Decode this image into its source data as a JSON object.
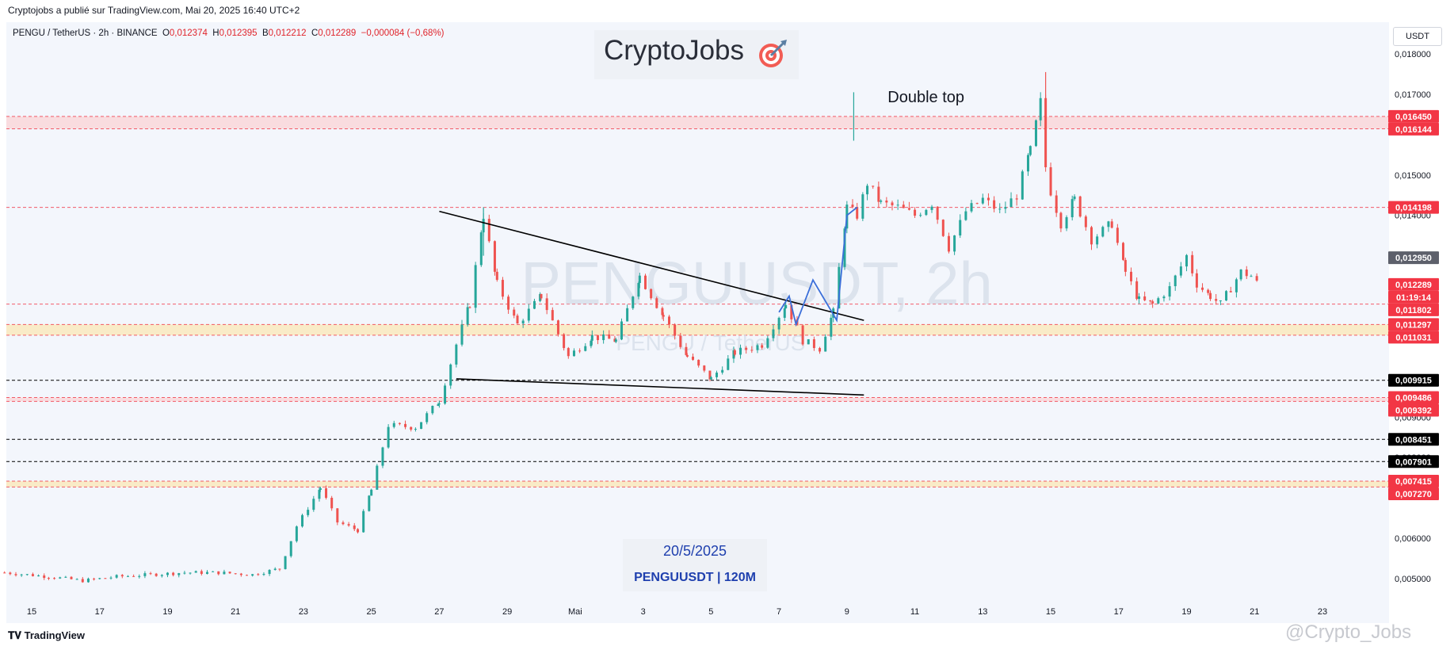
{
  "top_caption": "Cryptojobs a publié sur TradingView.com, Mai 20, 2025 16:40 UTC+2",
  "symbol_header": {
    "symbol": "PENGU / TetherUS · 2h · BINANCE",
    "open_label": "O",
    "open": "0,012374",
    "high_label": "H",
    "high": "0,012395",
    "low_label": "B",
    "low": "0,012212",
    "close_label": "C",
    "close": "0,012289",
    "change": "−0,000084 (−0,68%)"
  },
  "currency": "USDT",
  "brand": {
    "name": "CryptoJobs",
    "icon": "target-dart-icon"
  },
  "watermark": {
    "main": "PENGUUSDT, 2h",
    "sub": "PENGU / TetherUS"
  },
  "annotation_double_top": "Double top",
  "caption_box": {
    "date": "20/5/2025",
    "pair": "PENGUUSDT | 120M"
  },
  "footer_logo": "TradingView",
  "corner_watermark": "@Crypto_Jobs",
  "colors": {
    "up": "#26a69a",
    "down": "#ef5350",
    "resistance": "#f23645",
    "support": "#000000",
    "zone": "#fbe7b5",
    "projection": "#3b6fd9"
  },
  "chart_data": {
    "type": "candlestick",
    "title": "PENGU / TetherUS · 2h · BINANCE",
    "y_axis": {
      "ticks": [
        "0,018000",
        "0,017000",
        "0,015000",
        "0,014000",
        "0,013000",
        "0,009000",
        "0,008000",
        "0,006000",
        "0,005000"
      ],
      "tick_values": [
        0.018,
        0.017,
        0.015,
        0.014,
        0.013,
        0.009,
        0.008,
        0.006,
        0.005
      ],
      "range": [
        0.0045,
        0.0185
      ]
    },
    "x_axis": {
      "ticks": [
        "15",
        "17",
        "19",
        "21",
        "23",
        "25",
        "27",
        "29",
        "Mai",
        "3",
        "5",
        "7",
        "9",
        "11",
        "13",
        "15",
        "17",
        "19",
        "21",
        "23"
      ],
      "tick_days": [
        15,
        17,
        19,
        21,
        23,
        25,
        27,
        29,
        31,
        33,
        35,
        37,
        39,
        41,
        43,
        45,
        47,
        49,
        51,
        53
      ],
      "note": "tick_days are days counted from 1 April 2025 (Mai = 1 May)"
    },
    "close_price_series": {
      "days": [
        14.2,
        15.5,
        16.5,
        17.5,
        18.5,
        19.5,
        20.5,
        21.5,
        22.3,
        22.8,
        23.5,
        24.0,
        24.6,
        25.0,
        25.5,
        26.3,
        27.0,
        27.5,
        27.9,
        28.3,
        28.7,
        29.3,
        30.0,
        30.8,
        31.5,
        32.2,
        32.9,
        33.6,
        34.3,
        35.0,
        35.7,
        36.5,
        37.2,
        37.7,
        38.2,
        38.6,
        39.0,
        39.3,
        39.6,
        40.0,
        40.5,
        41.0,
        41.5,
        42.0,
        42.5,
        43.0,
        43.5,
        44.0,
        44.4,
        44.7,
        44.85,
        45.0,
        45.3,
        45.7,
        46.2,
        46.8,
        47.2,
        47.6,
        48.0,
        48.5,
        49.0,
        49.3,
        49.7,
        50.0,
        50.3,
        50.6,
        50.9,
        51.1
      ],
      "close": [
        0.00515,
        0.00505,
        0.00495,
        0.00505,
        0.0051,
        0.00515,
        0.00515,
        0.0051,
        0.00525,
        0.0063,
        0.00725,
        0.0064,
        0.0062,
        0.0072,
        0.0088,
        0.00875,
        0.0094,
        0.0108,
        0.0118,
        0.014,
        0.0123,
        0.0113,
        0.012,
        0.0105,
        0.011,
        0.0109,
        0.0125,
        0.0115,
        0.0105,
        0.00995,
        0.0106,
        0.0108,
        0.0118,
        0.0109,
        0.0107,
        0.0116,
        0.0142,
        0.014,
        0.0148,
        0.0143,
        0.0142,
        0.014,
        0.0143,
        0.0132,
        0.0141,
        0.0144,
        0.0141,
        0.0145,
        0.0156,
        0.0168,
        0.0152,
        0.0146,
        0.0138,
        0.0144,
        0.0134,
        0.0138,
        0.0126,
        0.0119,
        0.0118,
        0.0122,
        0.013,
        0.0123,
        0.012,
        0.0118,
        0.0122,
        0.0126,
        0.0125,
        0.01229
      ]
    },
    "price_labels": [
      {
        "text": "0,016450",
        "value": 0.01645,
        "kind": "resistance"
      },
      {
        "text": "0,016144",
        "value": 0.016144,
        "kind": "resistance"
      },
      {
        "text": "0,014198",
        "value": 0.014198,
        "kind": "resistance"
      },
      {
        "text": "0,012950",
        "value": 0.01295,
        "kind": "marker"
      },
      {
        "text": "0,012289",
        "value": 0.012289,
        "kind": "current"
      },
      {
        "text": "01:19:14",
        "value": 0.012105,
        "kind": "countdown"
      },
      {
        "text": "0,011802",
        "value": 0.011802,
        "kind": "resistance"
      },
      {
        "text": "0,011297",
        "value": 0.011297,
        "kind": "resistance"
      },
      {
        "text": "0,011031",
        "value": 0.011031,
        "kind": "resistance"
      },
      {
        "text": "0,009915",
        "value": 0.009915,
        "kind": "support"
      },
      {
        "text": "0,009486",
        "value": 0.009486,
        "kind": "resistance"
      },
      {
        "text": "0,009392",
        "value": 0.009392,
        "kind": "resistance"
      },
      {
        "text": "0,008451",
        "value": 0.008451,
        "kind": "support"
      },
      {
        "text": "0,007901",
        "value": 0.007901,
        "kind": "support"
      },
      {
        "text": "0,007415",
        "value": 0.007415,
        "kind": "resistance"
      },
      {
        "text": "0,007270",
        "value": 0.00727,
        "kind": "resistance"
      }
    ],
    "zones": [
      {
        "from": 0.016144,
        "to": 0.01645,
        "color": "pink"
      },
      {
        "from": 0.011031,
        "to": 0.011297,
        "color": "yellow"
      },
      {
        "from": 0.009392,
        "to": 0.009486,
        "color": "pink"
      },
      {
        "from": 0.00727,
        "to": 0.007415,
        "color": "yellow"
      }
    ],
    "trendlines": [
      {
        "from": [
          27.0,
          0.0141
        ],
        "to": [
          39.5,
          0.0114
        ],
        "label": "upper"
      },
      {
        "from": [
          27.5,
          0.00995
        ],
        "to": [
          39.5,
          0.00955
        ],
        "label": "lower"
      }
    ],
    "projection_path": [
      [
        37.0,
        0.0116
      ],
      [
        37.3,
        0.012
      ],
      [
        37.5,
        0.0113
      ],
      [
        38.0,
        0.0124
      ],
      [
        38.7,
        0.0114
      ],
      [
        39.0,
        0.014
      ],
      [
        39.3,
        0.0142
      ]
    ],
    "annotations": [
      "Double top"
    ]
  }
}
